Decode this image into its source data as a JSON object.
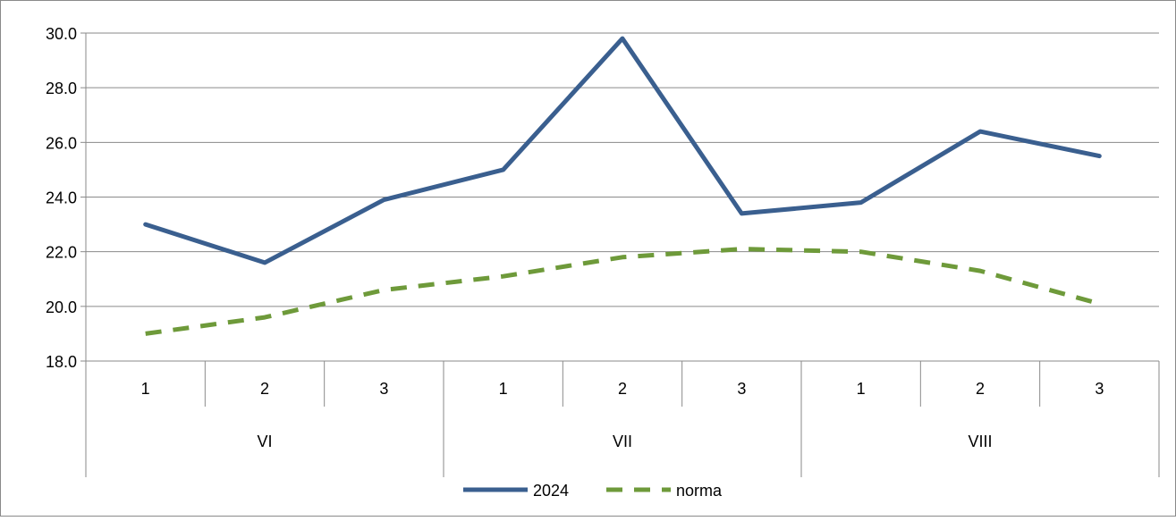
{
  "chart_data": {
    "type": "line",
    "title": "",
    "xlabel": "",
    "ylabel": "",
    "ylim": [
      18,
      30
    ],
    "yticks": [
      18.0,
      20.0,
      22.0,
      24.0,
      26.0,
      28.0,
      30.0
    ],
    "ytick_labels": [
      "18.0",
      "20.0",
      "22.0",
      "24.0",
      "26.0",
      "28.0",
      "30.0"
    ],
    "grid": true,
    "legend_position": "bottom",
    "categories": [
      "1",
      "2",
      "3",
      "1",
      "2",
      "3",
      "1",
      "2",
      "3"
    ],
    "groups": [
      {
        "label": "VI",
        "count": 3
      },
      {
        "label": "VII",
        "count": 3
      },
      {
        "label": "VIII",
        "count": 3
      }
    ],
    "series": [
      {
        "name": "2024",
        "color": "#3a5f8f",
        "style": "solid",
        "values": [
          23.0,
          21.6,
          23.9,
          25.0,
          29.8,
          23.4,
          23.8,
          26.4,
          25.5
        ]
      },
      {
        "name": "norma",
        "color": "#6e9a3a",
        "style": "dashed",
        "values": [
          19.0,
          19.6,
          20.6,
          21.1,
          21.8,
          22.1,
          22.0,
          21.3,
          20.1
        ]
      }
    ]
  }
}
